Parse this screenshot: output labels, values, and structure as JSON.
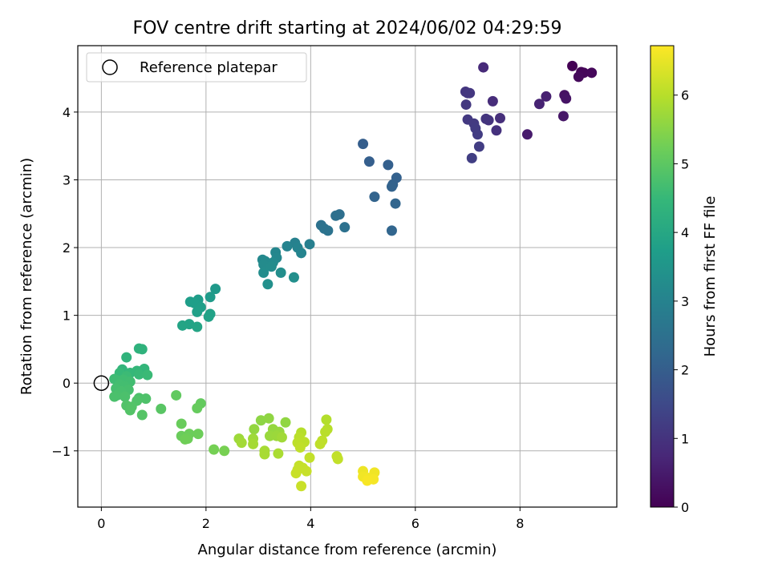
{
  "chart_data": {
    "type": "scatter",
    "title": "FOV centre drift starting at 2024/06/02 04:29:59",
    "xlabel": "Angular distance from reference (arcmin)",
    "ylabel": "Rotation from reference (arcmin)",
    "xlim": [
      -0.45,
      9.85
    ],
    "ylim": [
      -1.83,
      4.98
    ],
    "x_ticks": [
      0,
      2,
      4,
      6,
      8
    ],
    "y_ticks": [
      -1,
      0,
      1,
      2,
      3,
      4
    ],
    "x_tick_labels": [
      "0",
      "2",
      "4",
      "6",
      "8"
    ],
    "y_tick_labels": [
      "−1",
      "0",
      "1",
      "2",
      "3",
      "4"
    ],
    "grid": true,
    "legend": {
      "placement": "top-left",
      "entries": [
        "Reference platepar"
      ]
    },
    "reference_point": {
      "x": 0,
      "y": 0,
      "style": "hollow-circle"
    },
    "colorbar": {
      "label": "Hours from first FF file",
      "range": [
        0,
        6.72
      ],
      "ticks": [
        0,
        1,
        2,
        3,
        4,
        5,
        6
      ],
      "tick_labels": [
        "0",
        "1",
        "2",
        "3",
        "4",
        "5",
        "6"
      ],
      "colormap": "viridis"
    },
    "colormap_stops": [
      "#440154",
      "#482878",
      "#3e4989",
      "#31688e",
      "#26828e",
      "#1f9e89",
      "#35b779",
      "#6ece58",
      "#b5de2b",
      "#fde725"
    ],
    "points": [
      {
        "x": 9.0,
        "y": 4.68,
        "c": 0.0
      },
      {
        "x": 9.17,
        "y": 4.59,
        "c": 0.05
      },
      {
        "x": 9.22,
        "y": 4.58,
        "c": 0.1
      },
      {
        "x": 9.37,
        "y": 4.58,
        "c": 0.12
      },
      {
        "x": 9.12,
        "y": 4.52,
        "c": 0.15
      },
      {
        "x": 8.85,
        "y": 4.25,
        "c": 0.3
      },
      {
        "x": 8.88,
        "y": 4.2,
        "c": 0.35
      },
      {
        "x": 8.83,
        "y": 3.94,
        "c": 0.4
      },
      {
        "x": 8.14,
        "y": 3.67,
        "c": 0.5
      },
      {
        "x": 8.5,
        "y": 4.23,
        "c": 0.6
      },
      {
        "x": 8.37,
        "y": 4.12,
        "c": 0.65
      },
      {
        "x": 7.3,
        "y": 4.66,
        "c": 0.8
      },
      {
        "x": 7.48,
        "y": 4.16,
        "c": 0.85
      },
      {
        "x": 7.62,
        "y": 3.91,
        "c": 0.9
      },
      {
        "x": 7.55,
        "y": 3.73,
        "c": 0.95
      },
      {
        "x": 7.4,
        "y": 3.88,
        "c": 1.0
      },
      {
        "x": 7.35,
        "y": 3.9,
        "c": 1.03
      },
      {
        "x": 7.0,
        "y": 4.28,
        "c": 1.05
      },
      {
        "x": 6.96,
        "y": 4.3,
        "c": 1.07
      },
      {
        "x": 7.04,
        "y": 4.28,
        "c": 1.08
      },
      {
        "x": 6.97,
        "y": 4.11,
        "c": 1.1
      },
      {
        "x": 7.0,
        "y": 3.89,
        "c": 1.12
      },
      {
        "x": 7.12,
        "y": 3.83,
        "c": 1.15
      },
      {
        "x": 7.15,
        "y": 3.76,
        "c": 1.18
      },
      {
        "x": 7.19,
        "y": 3.67,
        "c": 1.2
      },
      {
        "x": 7.22,
        "y": 3.49,
        "c": 1.22
      },
      {
        "x": 7.08,
        "y": 3.32,
        "c": 1.25
      },
      {
        "x": 5.0,
        "y": 3.53,
        "c": 2.0
      },
      {
        "x": 5.12,
        "y": 3.27,
        "c": 2.02
      },
      {
        "x": 5.48,
        "y": 3.22,
        "c": 2.05
      },
      {
        "x": 5.64,
        "y": 3.03,
        "c": 2.07
      },
      {
        "x": 5.57,
        "y": 2.93,
        "c": 2.1
      },
      {
        "x": 5.55,
        "y": 2.9,
        "c": 2.12
      },
      {
        "x": 5.22,
        "y": 2.75,
        "c": 2.15
      },
      {
        "x": 5.62,
        "y": 2.65,
        "c": 2.18
      },
      {
        "x": 5.55,
        "y": 2.25,
        "c": 2.2
      },
      {
        "x": 4.55,
        "y": 2.49,
        "c": 2.45
      },
      {
        "x": 4.48,
        "y": 2.47,
        "c": 2.48
      },
      {
        "x": 4.65,
        "y": 2.3,
        "c": 2.5
      },
      {
        "x": 4.2,
        "y": 2.33,
        "c": 2.52
      },
      {
        "x": 4.26,
        "y": 2.28,
        "c": 2.55
      },
      {
        "x": 4.33,
        "y": 2.25,
        "c": 2.57
      },
      {
        "x": 3.98,
        "y": 2.05,
        "c": 2.9
      },
      {
        "x": 3.7,
        "y": 2.07,
        "c": 2.95
      },
      {
        "x": 3.75,
        "y": 2.0,
        "c": 3.0
      },
      {
        "x": 3.55,
        "y": 2.02,
        "c": 3.02
      },
      {
        "x": 3.82,
        "y": 1.92,
        "c": 3.05
      },
      {
        "x": 3.33,
        "y": 1.93,
        "c": 3.1
      },
      {
        "x": 3.35,
        "y": 1.85,
        "c": 3.12
      },
      {
        "x": 3.08,
        "y": 1.82,
        "c": 3.15
      },
      {
        "x": 3.13,
        "y": 1.8,
        "c": 3.17
      },
      {
        "x": 3.28,
        "y": 1.78,
        "c": 3.2
      },
      {
        "x": 3.1,
        "y": 1.75,
        "c": 3.22
      },
      {
        "x": 3.25,
        "y": 1.72,
        "c": 3.25
      },
      {
        "x": 3.1,
        "y": 1.63,
        "c": 3.27
      },
      {
        "x": 3.43,
        "y": 1.63,
        "c": 3.3
      },
      {
        "x": 3.68,
        "y": 1.56,
        "c": 3.32
      },
      {
        "x": 3.18,
        "y": 1.46,
        "c": 3.35
      },
      {
        "x": 2.18,
        "y": 1.39,
        "c": 3.6
      },
      {
        "x": 2.08,
        "y": 1.27,
        "c": 3.65
      },
      {
        "x": 1.85,
        "y": 1.23,
        "c": 3.7
      },
      {
        "x": 1.7,
        "y": 1.2,
        "c": 3.72
      },
      {
        "x": 1.78,
        "y": 1.18,
        "c": 3.75
      },
      {
        "x": 1.9,
        "y": 1.12,
        "c": 3.77
      },
      {
        "x": 1.83,
        "y": 1.05,
        "c": 3.8
      },
      {
        "x": 2.08,
        "y": 1.02,
        "c": 3.82
      },
      {
        "x": 2.05,
        "y": 0.98,
        "c": 3.85
      },
      {
        "x": 1.68,
        "y": 0.87,
        "c": 3.88
      },
      {
        "x": 1.55,
        "y": 0.85,
        "c": 3.9
      },
      {
        "x": 1.83,
        "y": 0.83,
        "c": 3.92
      },
      {
        "x": 0.72,
        "y": 0.51,
        "c": 4.3
      },
      {
        "x": 0.78,
        "y": 0.5,
        "c": 4.32
      },
      {
        "x": 0.48,
        "y": 0.38,
        "c": 4.35
      },
      {
        "x": 0.4,
        "y": 0.2,
        "c": 4.4
      },
      {
        "x": 0.82,
        "y": 0.21,
        "c": 4.42
      },
      {
        "x": 0.68,
        "y": 0.18,
        "c": 4.45
      },
      {
        "x": 0.55,
        "y": 0.15,
        "c": 4.47
      },
      {
        "x": 0.35,
        "y": 0.15,
        "c": 4.5
      },
      {
        "x": 0.72,
        "y": 0.13,
        "c": 4.52
      },
      {
        "x": 0.88,
        "y": 0.12,
        "c": 4.55
      },
      {
        "x": 0.48,
        "y": 0.1,
        "c": 4.57
      },
      {
        "x": 0.25,
        "y": 0.06,
        "c": 4.6
      },
      {
        "x": 0.3,
        "y": 0.04,
        "c": 4.62
      },
      {
        "x": 0.42,
        "y": 0.05,
        "c": 4.63
      },
      {
        "x": 0.55,
        "y": 0.02,
        "c": 4.65
      },
      {
        "x": 0.35,
        "y": -0.02,
        "c": 4.67
      },
      {
        "x": 0.45,
        "y": -0.05,
        "c": 4.68
      },
      {
        "x": 0.28,
        "y": -0.08,
        "c": 4.7
      },
      {
        "x": 0.52,
        "y": -0.1,
        "c": 4.72
      },
      {
        "x": 0.38,
        "y": -0.12,
        "c": 4.73
      },
      {
        "x": 0.3,
        "y": -0.18,
        "c": 4.75
      },
      {
        "x": 0.25,
        "y": -0.2,
        "c": 4.77
      },
      {
        "x": 0.45,
        "y": -0.2,
        "c": 4.78
      },
      {
        "x": 0.72,
        "y": -0.22,
        "c": 4.8
      },
      {
        "x": 0.85,
        "y": -0.23,
        "c": 4.82
      },
      {
        "x": 0.68,
        "y": -0.26,
        "c": 4.84
      },
      {
        "x": 0.48,
        "y": -0.33,
        "c": 4.85
      },
      {
        "x": 0.58,
        "y": -0.35,
        "c": 4.87
      },
      {
        "x": 0.55,
        "y": -0.4,
        "c": 4.88
      },
      {
        "x": 0.78,
        "y": -0.47,
        "c": 4.9
      },
      {
        "x": 1.14,
        "y": -0.38,
        "c": 4.95
      },
      {
        "x": 1.43,
        "y": -0.18,
        "c": 5.05
      },
      {
        "x": 1.9,
        "y": -0.3,
        "c": 5.1
      },
      {
        "x": 1.83,
        "y": -0.37,
        "c": 5.12
      },
      {
        "x": 1.53,
        "y": -0.6,
        "c": 5.15
      },
      {
        "x": 1.53,
        "y": -0.78,
        "c": 5.17
      },
      {
        "x": 1.68,
        "y": -0.75,
        "c": 5.19
      },
      {
        "x": 1.85,
        "y": -0.75,
        "c": 5.2
      },
      {
        "x": 1.65,
        "y": -0.82,
        "c": 5.22
      },
      {
        "x": 1.6,
        "y": -0.83,
        "c": 5.24
      },
      {
        "x": 2.15,
        "y": -0.98,
        "c": 5.3
      },
      {
        "x": 2.35,
        "y": -1.0,
        "c": 5.32
      },
      {
        "x": 3.05,
        "y": -0.55,
        "c": 5.55
      },
      {
        "x": 3.2,
        "y": -0.52,
        "c": 5.57
      },
      {
        "x": 3.52,
        "y": -0.58,
        "c": 5.6
      },
      {
        "x": 2.92,
        "y": -0.68,
        "c": 5.62
      },
      {
        "x": 3.28,
        "y": -0.68,
        "c": 5.64
      },
      {
        "x": 3.4,
        "y": -0.72,
        "c": 5.66
      },
      {
        "x": 3.22,
        "y": -0.78,
        "c": 5.68
      },
      {
        "x": 3.35,
        "y": -0.78,
        "c": 5.7
      },
      {
        "x": 2.63,
        "y": -0.82,
        "c": 5.72
      },
      {
        "x": 2.9,
        "y": -0.82,
        "c": 5.74
      },
      {
        "x": 3.45,
        "y": -0.8,
        "c": 5.76
      },
      {
        "x": 2.68,
        "y": -0.88,
        "c": 5.78
      },
      {
        "x": 2.9,
        "y": -0.9,
        "c": 5.8
      },
      {
        "x": 3.12,
        "y": -1.0,
        "c": 5.82
      },
      {
        "x": 3.12,
        "y": -1.05,
        "c": 5.84
      },
      {
        "x": 3.38,
        "y": -1.04,
        "c": 5.86
      },
      {
        "x": 4.3,
        "y": -0.54,
        "c": 5.95
      },
      {
        "x": 3.82,
        "y": -0.73,
        "c": 5.97
      },
      {
        "x": 4.32,
        "y": -0.68,
        "c": 5.99
      },
      {
        "x": 4.28,
        "y": -0.72,
        "c": 6.01
      },
      {
        "x": 3.78,
        "y": -0.8,
        "c": 6.03
      },
      {
        "x": 3.88,
        "y": -0.87,
        "c": 6.05
      },
      {
        "x": 3.75,
        "y": -0.88,
        "c": 6.06
      },
      {
        "x": 4.22,
        "y": -0.85,
        "c": 6.07
      },
      {
        "x": 4.18,
        "y": -0.9,
        "c": 6.08
      },
      {
        "x": 3.8,
        "y": -0.95,
        "c": 6.09
      },
      {
        "x": 4.5,
        "y": -1.08,
        "c": 6.1
      },
      {
        "x": 4.52,
        "y": -1.12,
        "c": 6.11
      },
      {
        "x": 3.98,
        "y": -1.1,
        "c": 6.12
      },
      {
        "x": 3.78,
        "y": -1.22,
        "c": 6.13
      },
      {
        "x": 3.85,
        "y": -1.25,
        "c": 6.14
      },
      {
        "x": 3.75,
        "y": -1.28,
        "c": 6.15
      },
      {
        "x": 3.92,
        "y": -1.3,
        "c": 6.16
      },
      {
        "x": 3.72,
        "y": -1.33,
        "c": 6.17
      },
      {
        "x": 3.82,
        "y": -1.52,
        "c": 6.18
      },
      {
        "x": 5.0,
        "y": -1.3,
        "c": 6.55
      },
      {
        "x": 5.22,
        "y": -1.32,
        "c": 6.58
      },
      {
        "x": 5.0,
        "y": -1.38,
        "c": 6.6
      },
      {
        "x": 5.1,
        "y": -1.4,
        "c": 6.62
      },
      {
        "x": 5.2,
        "y": -1.42,
        "c": 6.64
      },
      {
        "x": 5.08,
        "y": -1.44,
        "c": 6.66
      }
    ]
  }
}
